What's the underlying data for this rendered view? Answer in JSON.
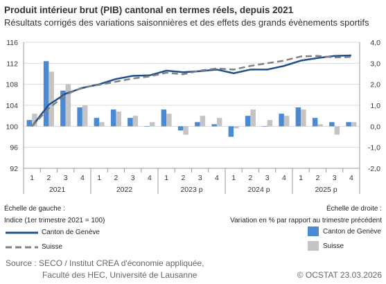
{
  "title": "Produit intérieur brut (PIB) cantonal en termes réels, depuis 2021",
  "subtitle": "Résultats corrigés des variations saisonnières et des effets des grands évènements sportifs",
  "legend": {
    "left_heading": "Échelle de gauche :",
    "left_desc": "Indice (1er trimestre 2021 = 100)",
    "right_heading": "Échelle de droite :",
    "right_desc": "Variation en % par rapport au trimestre précédent",
    "geneve": "Canton de Genève",
    "suisse": "Suisse"
  },
  "source_line1": "Source : SECO / Institut CREA d'économie appliquée,",
  "source_line2": "Faculté des HEC, Université de Lausanne",
  "copyright": "© OCSTAT 23.03.2026",
  "chart_data": {
    "type": "bar+line",
    "quarters": [
      "1",
      "2",
      "3",
      "4",
      "1",
      "2",
      "3",
      "4",
      "1",
      "2",
      "3",
      "4",
      "1",
      "2",
      "3",
      "4",
      "1",
      "2",
      "3",
      "4"
    ],
    "years": [
      "2021",
      "2022",
      "2023 p",
      "2024 p",
      "2025 p"
    ],
    "left_axis": {
      "ylim": [
        92,
        116
      ],
      "ticks": [
        "92",
        "96",
        "100",
        "104",
        "108",
        "112",
        "116"
      ]
    },
    "right_axis": {
      "ylim": [
        -2,
        4
      ],
      "ticks": [
        "-2,0",
        "-1,0",
        "0,0",
        "1,0",
        "2,0",
        "3,0",
        "4,0"
      ]
    },
    "colors": {
      "geneve_line": "#1f4e8c",
      "suisse_line": "#808080",
      "geneve_bar": "#4a8ad4",
      "suisse_bar": "#c4c4c4"
    },
    "series": [
      {
        "name": "Canton de Genève",
        "kind": "line",
        "axis": "left",
        "values": [
          100,
          104.1,
          106.2,
          107.3,
          108.0,
          109.0,
          109.6,
          109.7,
          110.6,
          110.3,
          110.5,
          110.8,
          110.1,
          110.8,
          110.8,
          111.5,
          112.5,
          113.0,
          113.4,
          113.5
        ]
      },
      {
        "name": "Suisse",
        "kind": "line",
        "axis": "left",
        "values": [
          100,
          103.4,
          106.0,
          107.4,
          107.9,
          108.5,
          109.1,
          109.5,
          110.2,
          109.9,
          110.6,
          111.0,
          110.8,
          111.5,
          112.0,
          112.5,
          113.3,
          113.4,
          113.1,
          113.2
        ]
      },
      {
        "name": "Canton de Genève",
        "kind": "bar",
        "axis": "right",
        "values": [
          0.3,
          3.1,
          1.7,
          0.9,
          0.4,
          0.8,
          0.4,
          0.0,
          0.8,
          -0.2,
          0.2,
          0.1,
          -0.5,
          0.5,
          0.0,
          0.6,
          0.9,
          0.4,
          0.2,
          0.2
        ]
      },
      {
        "name": "Suisse",
        "kind": "bar",
        "axis": "right",
        "values": [
          0.6,
          2.6,
          2.0,
          1.0,
          0.2,
          0.7,
          0.5,
          0.2,
          0.6,
          -0.4,
          0.5,
          0.4,
          -0.1,
          0.8,
          0.3,
          0.5,
          0.8,
          0.1,
          -0.4,
          0.2
        ]
      }
    ]
  }
}
